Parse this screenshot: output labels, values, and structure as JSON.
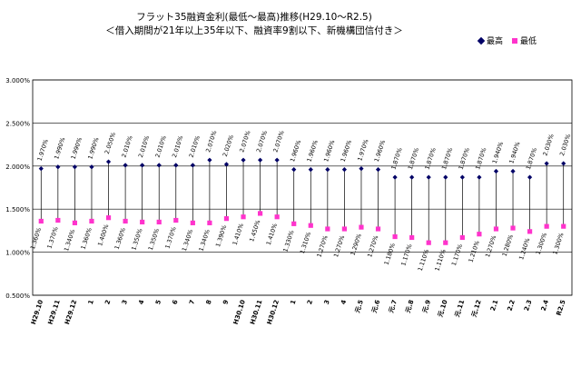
{
  "chart_data": {
    "type": "line",
    "title": "フラット35融資金利(最低～最高)推移(H29.10～R2.5)",
    "subtitle": "＜借入期間が21年以上35年以下、融資率9割以下、新機構団信付き＞",
    "categories": [
      "H29.10",
      "H29.11",
      "H29.12",
      "1",
      "2",
      "3",
      "4",
      "5",
      "6",
      "7",
      "8",
      "9",
      "H30.10",
      "H30.11",
      "H30.12",
      "1",
      "2",
      "3",
      "4",
      "元.5",
      "元.6",
      "元.7",
      "元.8",
      "元.9",
      "元.10",
      "元.11",
      "元.12",
      "2.1",
      "2.2",
      "2.3",
      "2.4",
      "R2.5"
    ],
    "series": [
      {
        "name": "最高",
        "color": "#000066",
        "marker": "diamond",
        "values": [
          1.97,
          1.99,
          1.99,
          1.99,
          2.05,
          2.01,
          2.01,
          2.01,
          2.01,
          2.01,
          2.07,
          2.02,
          2.07,
          2.07,
          2.07,
          1.96,
          1.96,
          1.96,
          1.96,
          1.97,
          1.96,
          1.87,
          1.87,
          1.87,
          1.87,
          1.87,
          1.87,
          1.94,
          1.94,
          1.87,
          2.03,
          2.03
        ],
        "labels": [
          "1.970%",
          "1.990%",
          "1.990%",
          "1.990%",
          "2.050%",
          "2.010%",
          "2.010%",
          "2.010%",
          "2.010%",
          "2.010%",
          "2.070%",
          "2.020%",
          "2.070%",
          "2.070%",
          "2.070%",
          "1.960%",
          "1.960%",
          "1.960%",
          "1.960%",
          "1.970%",
          "1.960%",
          "1.870%",
          "1.870%",
          "1.870%",
          "1.870%",
          "1.870%",
          "1.870%",
          "1.940%",
          "1.940%",
          "1.870%",
          "2.030%",
          "2.030%"
        ]
      },
      {
        "name": "最低",
        "color": "#ff33cc",
        "marker": "square",
        "values": [
          1.36,
          1.37,
          1.34,
          1.36,
          1.4,
          1.36,
          1.35,
          1.35,
          1.37,
          1.34,
          1.34,
          1.39,
          1.41,
          1.45,
          1.41,
          1.33,
          1.31,
          1.27,
          1.27,
          1.29,
          1.27,
          1.18,
          1.17,
          1.11,
          1.11,
          1.17,
          1.21,
          1.27,
          1.28,
          1.24,
          1.3,
          1.3
        ],
        "labels": [
          "1.360%",
          "1.370%",
          "1.340%",
          "1.360%",
          "1.400%",
          "1.360%",
          "1.350%",
          "1.350%",
          "1.370%",
          "1.340%",
          "1.340%",
          "1.390%",
          "1.410%",
          "1.450%",
          "1.410%",
          "1.330%",
          "1.310%",
          "1.270%",
          "1.270%",
          "1.290%",
          "1.270%",
          "1.180%",
          "1.170%",
          "1.110%",
          "1.110%",
          "1.170%",
          "1.210%",
          "1.270%",
          "1.280%",
          "1.240%",
          "1.300%",
          "1.300%"
        ]
      }
    ],
    "ylim": [
      0.5,
      3.0
    ],
    "yticks": [
      3.0,
      2.5,
      2.0,
      1.5,
      1.0,
      0.5
    ],
    "ytick_labels": [
      "3.000%",
      "2.500%",
      "2.000%",
      "1.500%",
      "1.000%",
      "0.500%"
    ],
    "legend": "top-right",
    "grid": true
  }
}
